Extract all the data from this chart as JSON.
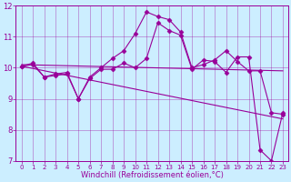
{
  "xlabel": "Windchill (Refroidissement éolien,°C)",
  "background_color": "#cceeff",
  "line_color": "#990099",
  "xlim": [
    -0.5,
    23.5
  ],
  "ylim": [
    7,
    12
  ],
  "yticks": [
    7,
    8,
    9,
    10,
    11,
    12
  ],
  "xticks": [
    0,
    1,
    2,
    3,
    4,
    5,
    6,
    7,
    8,
    9,
    10,
    11,
    12,
    13,
    14,
    15,
    16,
    17,
    18,
    19,
    20,
    21,
    22,
    23
  ],
  "series": [
    {
      "x": [
        0,
        1,
        2,
        3,
        4,
        5,
        6,
        7,
        8,
        9,
        10,
        11,
        12,
        13,
        14,
        15,
        16,
        17,
        18,
        19,
        20,
        21,
        22,
        23
      ],
      "y": [
        10.05,
        10.15,
        9.7,
        9.8,
        9.85,
        9.0,
        9.7,
        10.0,
        10.3,
        10.55,
        11.1,
        11.8,
        11.65,
        11.55,
        11.15,
        10.0,
        10.1,
        10.25,
        10.55,
        10.2,
        9.9,
        9.9,
        8.55,
        8.5
      ],
      "has_markers": true
    },
    {
      "x": [
        0,
        1,
        2,
        3,
        4,
        5,
        6,
        7,
        8,
        9,
        10,
        11,
        12,
        13,
        14,
        15,
        16,
        17,
        18,
        19,
        20,
        21,
        22,
        23
      ],
      "y": [
        10.05,
        10.1,
        9.7,
        9.75,
        9.8,
        9.0,
        9.65,
        9.95,
        9.95,
        10.15,
        10.0,
        10.3,
        11.45,
        11.2,
        11.05,
        9.95,
        10.25,
        10.2,
        9.85,
        10.35,
        10.35,
        7.35,
        7.0,
        8.55
      ],
      "has_markers": true
    },
    {
      "x": [
        0,
        23
      ],
      "y": [
        10.1,
        9.9
      ],
      "has_markers": false
    },
    {
      "x": [
        0,
        23
      ],
      "y": [
        10.05,
        8.35
      ],
      "has_markers": false
    }
  ],
  "marker": "D",
  "markersize": 2.5,
  "linewidth": 0.8
}
